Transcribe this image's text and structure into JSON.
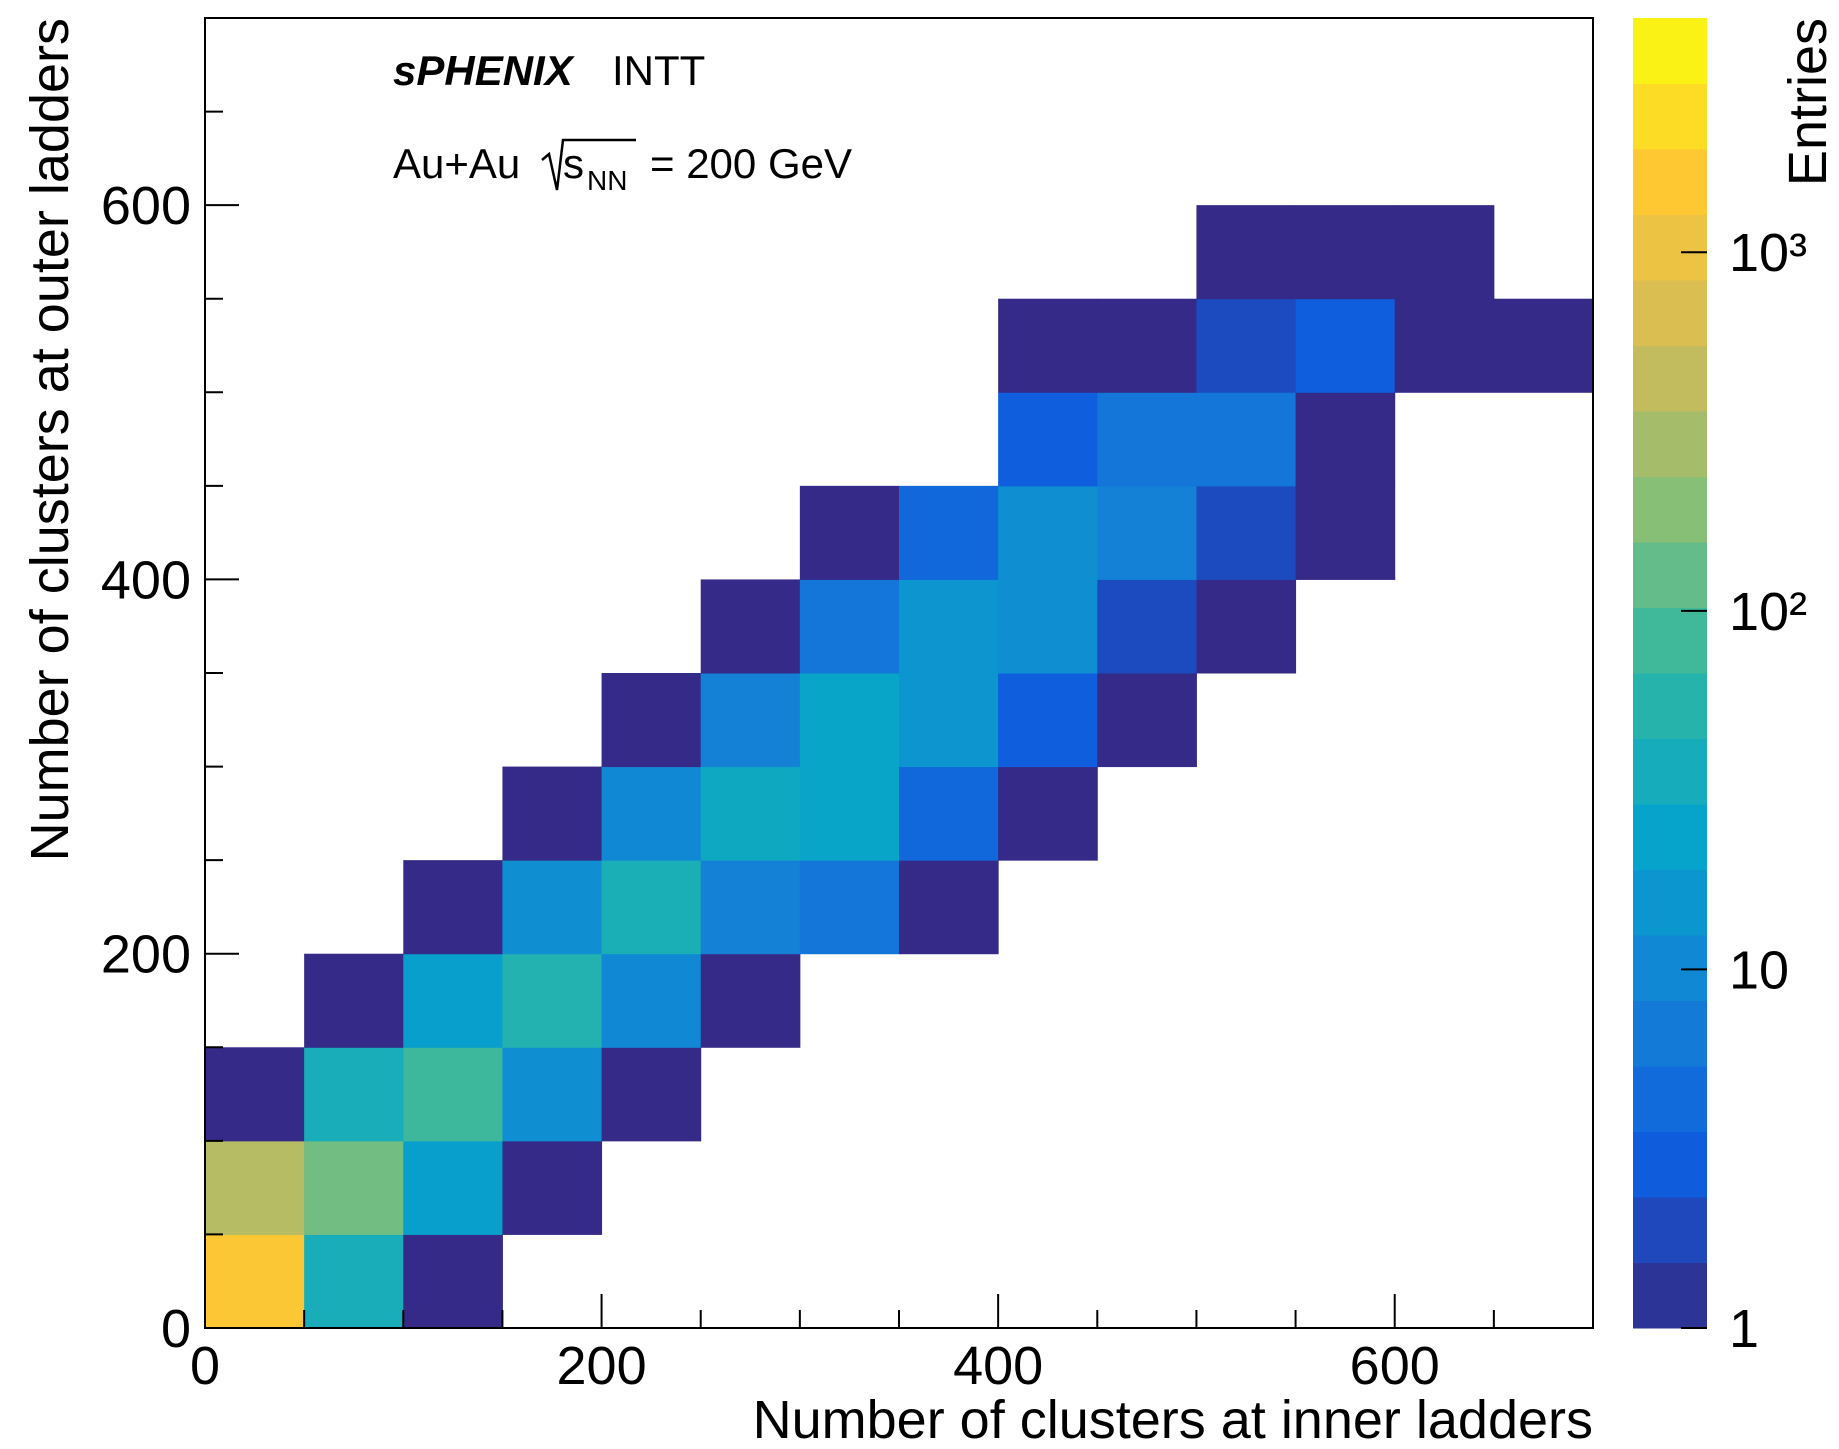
{
  "chart_data": {
    "type": "heatmap2d",
    "annotations": {
      "experiment": "sPHENIX",
      "detector": "INTT",
      "system": "Au+Au",
      "sqrt_var": "s",
      "sqrt_sub": "NN",
      "energy": "= 200 GeV"
    },
    "x_label": "Number of clusters at inner ladders",
    "y_label": "Number of clusters at outer ladders",
    "z_label": "Entries",
    "xlim": [
      0,
      700
    ],
    "ylim": [
      0,
      700
    ],
    "xticks": [
      0,
      200,
      400,
      600
    ],
    "yticks": [
      0,
      200,
      400,
      600
    ],
    "xminorticks": [
      50,
      100,
      150,
      250,
      300,
      350,
      450,
      500,
      550,
      650
    ],
    "yminorticks": [
      50,
      100,
      150,
      250,
      300,
      350,
      450,
      500,
      550,
      650
    ],
    "x_bins": [
      0,
      50,
      100,
      150,
      200,
      250,
      300,
      350,
      400,
      450,
      500,
      550,
      600,
      650,
      700
    ],
    "y_bins": [
      0,
      50,
      100,
      150,
      200,
      250,
      300,
      350,
      400,
      450,
      500,
      550,
      600,
      650,
      700
    ],
    "z": [
      [
        1500,
        38,
        1,
        null,
        null,
        null,
        null,
        null,
        null,
        null,
        null,
        null,
        null,
        null
      ],
      [
        375,
        150,
        20,
        1,
        null,
        null,
        null,
        null,
        null,
        null,
        null,
        null,
        null,
        null
      ],
      [
        1,
        38,
        80,
        12,
        1,
        null,
        null,
        null,
        null,
        null,
        null,
        null,
        null,
        null
      ],
      [
        null,
        1,
        20,
        50,
        10,
        1,
        null,
        null,
        null,
        null,
        null,
        null,
        null,
        null
      ],
      [
        null,
        null,
        1,
        12,
        40,
        8,
        6,
        1,
        null,
        null,
        null,
        null,
        null,
        null
      ],
      [
        null,
        null,
        null,
        1,
        10,
        30,
        25,
        4,
        1,
        null,
        null,
        null,
        null,
        null
      ],
      [
        null,
        null,
        null,
        null,
        1,
        8,
        25,
        15,
        3,
        1,
        null,
        null,
        null,
        null
      ],
      [
        null,
        null,
        null,
        null,
        null,
        1,
        6,
        15,
        12,
        2,
        1,
        null,
        null,
        null
      ],
      [
        null,
        null,
        null,
        null,
        null,
        null,
        1,
        4,
        12,
        8,
        2,
        1,
        null,
        null
      ],
      [
        null,
        null,
        null,
        null,
        null,
        null,
        null,
        null,
        3,
        6,
        6,
        1,
        null,
        null
      ],
      [
        null,
        null,
        null,
        null,
        null,
        null,
        null,
        null,
        1,
        1,
        2,
        3,
        1,
        1
      ],
      [
        null,
        null,
        null,
        null,
        null,
        null,
        null,
        null,
        null,
        null,
        1,
        1,
        1,
        null
      ],
      [
        null,
        null,
        null,
        null,
        null,
        null,
        null,
        null,
        null,
        null,
        null,
        null,
        null,
        null
      ],
      [
        null,
        null,
        null,
        null,
        null,
        null,
        null,
        null,
        null,
        null,
        null,
        null,
        null,
        null
      ]
    ],
    "zlim": [
      1,
      4500
    ],
    "zlog": true,
    "zticks": [
      1,
      10,
      {
        "value": 100,
        "label": "10²"
      },
      {
        "value": 1000,
        "label": "10³"
      }
    ],
    "colorscale": [
      "#352a87",
      "#0f5cdd",
      "#1481d6",
      "#06a4ca",
      "#2eb7a4",
      "#87bf77",
      "#d1bb59",
      "#fec832",
      "#f9fb0e"
    ]
  }
}
